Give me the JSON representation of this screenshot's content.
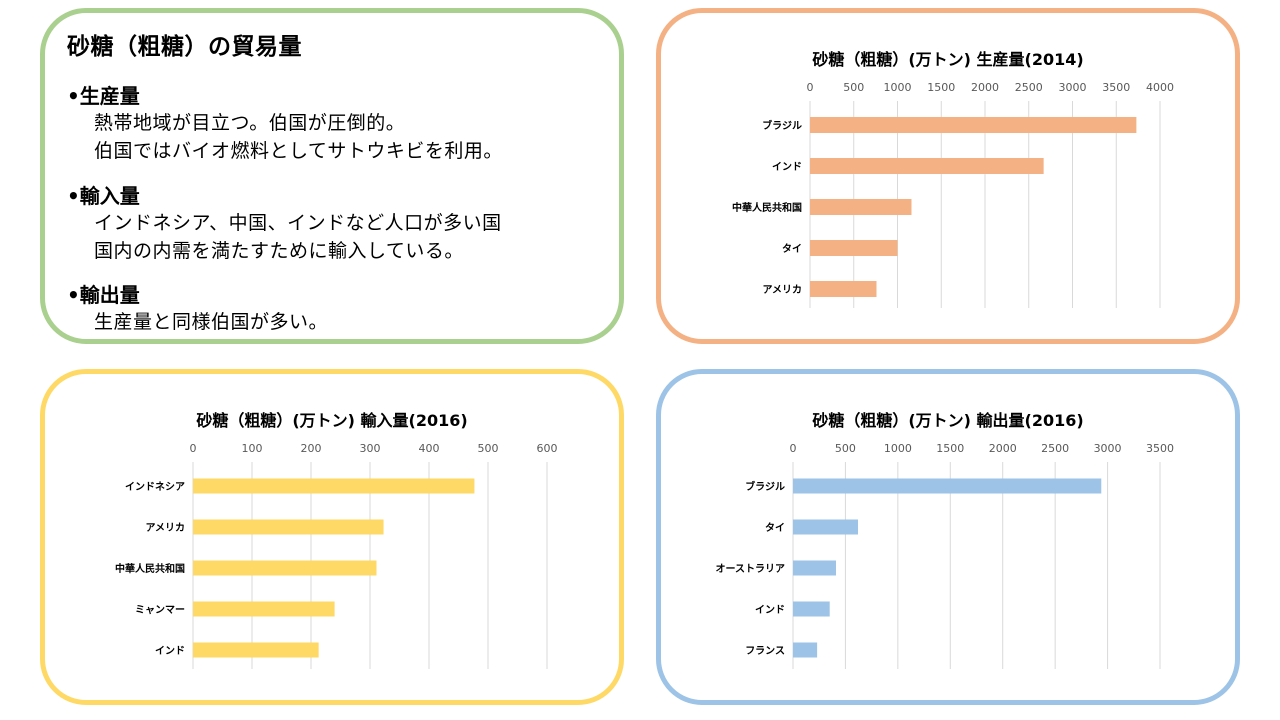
{
  "summary": {
    "title": "砂糖（粗糖）の貿易量",
    "sections": [
      {
        "heading": "•生産量",
        "lines": [
          "熱帯地域が目立つ。伯国が圧倒的。",
          "伯国ではバイオ燃料としてサトウキビを利用。"
        ]
      },
      {
        "heading": "•輸入量",
        "lines": [
          "インドネシア、中国、インドなど人口が多い国",
          "国内の内需を満たすために輸入している。"
        ]
      },
      {
        "heading": "•輸出量",
        "lines": [
          "生産量と同様伯国が多い。"
        ]
      }
    ]
  },
  "chart_data": [
    {
      "id": "production",
      "type": "bar",
      "orientation": "horizontal",
      "title": "砂糖（粗糖）(万トン) 生産量(2014)",
      "categories": [
        "ブラジル",
        "インド",
        "中華人民共和国",
        "タイ",
        "アメリカ"
      ],
      "values": [
        3730,
        2670,
        1160,
        1000,
        760
      ],
      "xlim": [
        0,
        4000
      ],
      "ticks": [
        0,
        500,
        1000,
        1500,
        2000,
        2500,
        3000,
        3500,
        4000
      ],
      "axis_position": "top",
      "grid": true,
      "color": "#f4b183"
    },
    {
      "id": "imports",
      "type": "bar",
      "orientation": "horizontal",
      "title": "砂糖（粗糖）(万トン) 輸入量(2016)",
      "categories": [
        "インドネシア",
        "アメリカ",
        "中華人民共和国",
        "ミャンマー",
        "インド"
      ],
      "values": [
        477,
        323,
        311,
        240,
        213
      ],
      "xlim": [
        0,
        600
      ],
      "ticks": [
        0,
        100,
        200,
        300,
        400,
        500,
        600
      ],
      "axis_position": "top",
      "grid": true,
      "color": "#ffd966"
    },
    {
      "id": "exports",
      "type": "bar",
      "orientation": "horizontal",
      "title": "砂糖（粗糖）(万トン) 輸出量(2016)",
      "categories": [
        "ブラジル",
        "タイ",
        "オーストラリア",
        "インド",
        "フランス"
      ],
      "values": [
        2940,
        620,
        410,
        350,
        230
      ],
      "xlim": [
        0,
        3500
      ],
      "ticks": [
        0,
        500,
        1000,
        1500,
        2000,
        2500,
        3000,
        3500
      ],
      "axis_position": "top",
      "grid": true,
      "color": "#9dc3e6"
    }
  ]
}
